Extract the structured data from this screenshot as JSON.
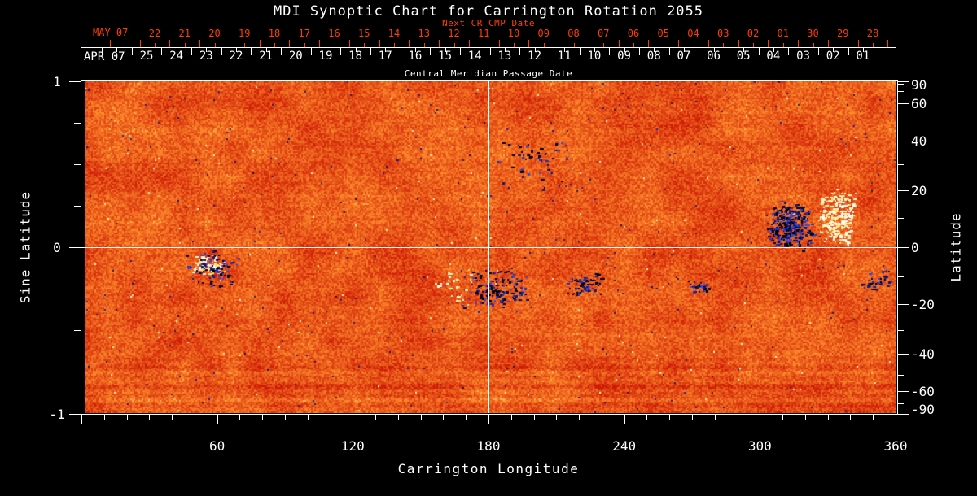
{
  "title": "MDI Synoptic Chart for Carrington Rotation 2055",
  "colors": {
    "background": "#000000",
    "foreground": "#ffffff",
    "next_cr_accent": "#ff3d00",
    "map_base_orange": "#f2521e",
    "negative_polarity": "#1c2fae",
    "positive_polarity": "#ffedA0"
  },
  "top_axis": {
    "next_cr_label": "Next CR CMP Date",
    "next_month_label": "MAY 07",
    "next_days": [
      "22",
      "21",
      "20",
      "19",
      "18",
      "17",
      "16",
      "15",
      "14",
      "13",
      "12",
      "11",
      "10",
      "09",
      "08",
      "07",
      "06",
      "05",
      "04",
      "03",
      "02",
      "01",
      "30",
      "29",
      "28"
    ],
    "cmp_month_label": "APR 07",
    "cmp_days": [
      "25",
      "24",
      "23",
      "22",
      "21",
      "20",
      "19",
      "18",
      "17",
      "16",
      "15",
      "14",
      "13",
      "12",
      "11",
      "10",
      "09",
      "08",
      "07",
      "06",
      "05",
      "04",
      "03",
      "02",
      "01"
    ],
    "cmp_axis_title": "Central Meridian Passage Date"
  },
  "chart_data": {
    "type": "heatmap",
    "description": "Solar magnetic field synoptic map (MDI magnetogram) for Carrington rotation 2055; orange noise background with dark blue-black negative-polarity and yellow-white positive-polarity active regions",
    "xlabel": "Carrington Longitude",
    "ylabel_left": "Sine Latitude",
    "ylabel_right": "Latitude",
    "xlim": [
      0,
      360
    ],
    "sine_latitude_lim": [
      -1,
      1
    ],
    "x_tick_labels": [
      "60",
      "120",
      "180",
      "240",
      "300",
      "360"
    ],
    "x_tick_values": [
      60,
      120,
      180,
      240,
      300,
      360
    ],
    "x_minor_step_deg": 10,
    "left_tick_labels": [
      "1",
      "0",
      "-1"
    ],
    "left_tick_values": [
      1,
      0,
      -1
    ],
    "left_minor_step": 0.25,
    "right_tick_labels": [
      "90",
      "60",
      "40",
      "20",
      "0",
      "-20",
      "-40",
      "-60",
      "-90"
    ],
    "right_tick_values": [
      90,
      60,
      40,
      20,
      0,
      -20,
      -40,
      -60,
      -90
    ],
    "right_minor_step_deg": 10,
    "grid_crosshair": {
      "longitude_deg": 180,
      "sine_latitude": 0
    },
    "active_regions": [
      {
        "longitude_deg": 313.2,
        "sine_latitude": 0.13,
        "r_lon_deg": 10.8,
        "r_slat": 0.16,
        "polarity": "negative",
        "density": 300
      },
      {
        "longitude_deg": 333.7,
        "sine_latitude": 0.18,
        "r_lon_deg": 8.6,
        "r_slat": 0.18,
        "polarity": "positive",
        "density": 240
      },
      {
        "longitude_deg": 56.5,
        "sine_latitude": -0.11,
        "r_lon_deg": 7.9,
        "r_slat": 0.07,
        "polarity": "positive",
        "density": 80
      },
      {
        "longitude_deg": 58.3,
        "sine_latitude": -0.13,
        "r_lon_deg": 12.6,
        "r_slat": 0.12,
        "polarity": "negative",
        "density": 75
      },
      {
        "longitude_deg": 182.9,
        "sine_latitude": -0.26,
        "r_lon_deg": 16.2,
        "r_slat": 0.15,
        "polarity": "negative",
        "density": 150
      },
      {
        "longitude_deg": 165.6,
        "sine_latitude": -0.22,
        "r_lon_deg": 10.8,
        "r_slat": 0.12,
        "polarity": "positive",
        "density": 25
      },
      {
        "longitude_deg": 222.5,
        "sine_latitude": -0.22,
        "r_lon_deg": 9.4,
        "r_slat": 0.08,
        "polarity": "negative",
        "density": 70
      },
      {
        "longitude_deg": 272.9,
        "sine_latitude": -0.24,
        "r_lon_deg": 5.0,
        "r_slat": 0.04,
        "polarity": "negative",
        "density": 28
      },
      {
        "longitude_deg": 199.8,
        "sine_latitude": 0.51,
        "r_lon_deg": 18.0,
        "r_slat": 0.17,
        "polarity": "negative",
        "density": 45
      },
      {
        "longitude_deg": 351.0,
        "sine_latitude": -0.2,
        "r_lon_deg": 7.2,
        "r_slat": 0.07,
        "polarity": "negative",
        "density": 30
      }
    ]
  }
}
